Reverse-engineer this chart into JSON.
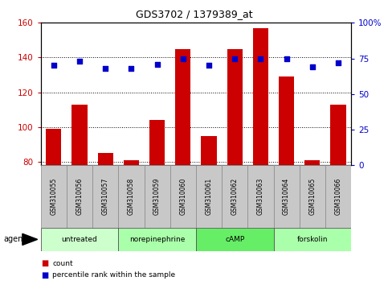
{
  "title": "GDS3702 / 1379389_at",
  "samples": [
    "GSM310055",
    "GSM310056",
    "GSM310057",
    "GSM310058",
    "GSM310059",
    "GSM310060",
    "GSM310061",
    "GSM310062",
    "GSM310063",
    "GSM310064",
    "GSM310065",
    "GSM310066"
  ],
  "bar_values": [
    99,
    113,
    85,
    81,
    104,
    145,
    95,
    145,
    157,
    129,
    81,
    113
  ],
  "percentile_values": [
    70,
    73,
    68,
    68,
    71,
    75,
    70,
    75,
    75,
    75,
    69,
    72
  ],
  "bar_color": "#cc0000",
  "percentile_color": "#0000cc",
  "ylim_left": [
    78,
    160
  ],
  "ylim_right": [
    0,
    100
  ],
  "yticks_left": [
    80,
    100,
    120,
    140,
    160
  ],
  "yticks_right": [
    0,
    25,
    50,
    75,
    100
  ],
  "ytick_labels_right": [
    "0",
    "25",
    "50",
    "75",
    "100%"
  ],
  "agent_groups": [
    {
      "label": "untreated",
      "start": 0,
      "end": 2,
      "color": "#ccffcc"
    },
    {
      "label": "norepinephrine",
      "start": 3,
      "end": 5,
      "color": "#99ff99"
    },
    {
      "label": "cAMP",
      "start": 6,
      "end": 8,
      "color": "#66ee66"
    },
    {
      "label": "forskolin",
      "start": 9,
      "end": 11,
      "color": "#99ff99"
    }
  ],
  "legend_items": [
    {
      "label": "count",
      "color": "#cc0000"
    },
    {
      "label": "percentile rank within the sample",
      "color": "#0000cc"
    }
  ],
  "agent_label": "agent"
}
